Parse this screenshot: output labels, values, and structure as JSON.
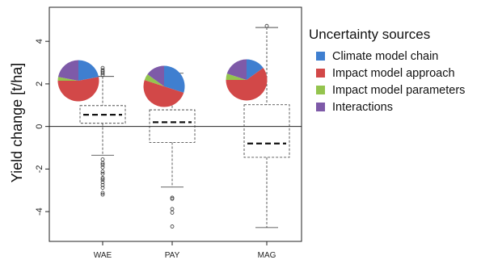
{
  "chart_data": {
    "type": "boxplot",
    "ylabel": "Yield change [t/ha]",
    "ylim": [
      -5.4,
      5.6
    ],
    "yticks": [
      -4,
      -2,
      0,
      2,
      4
    ],
    "reference_line": 0,
    "categories": [
      "WAE",
      "PAY",
      "MAG"
    ],
    "boxes": [
      {
        "name": "WAE",
        "whisker_low": -1.35,
        "q1": 0.15,
        "median": 0.55,
        "q3": 0.98,
        "whisker_high": 2.35,
        "outliers": [
          2.75,
          2.65,
          2.58,
          2.5,
          2.42,
          -1.55,
          -1.72,
          -1.8,
          -1.92,
          -2.12,
          -2.22,
          -2.42,
          -2.5,
          -2.62,
          -2.75,
          -2.88,
          -3.12,
          -3.2
        ]
      },
      {
        "name": "PAY",
        "whisker_low": -2.85,
        "q1": -0.75,
        "median": 0.2,
        "q3": 0.78,
        "whisker_high": 2.5,
        "outliers": [
          -3.35,
          -3.4,
          -3.88,
          -4.05,
          -4.7
        ]
      },
      {
        "name": "MAG",
        "whisker_low": -4.75,
        "q1": -1.45,
        "median": -0.8,
        "q3": 1.02,
        "whisker_high": 4.65,
        "outliers": [
          4.72
        ]
      }
    ],
    "uncertainty_shares": [
      {
        "name": "WAE",
        "values": [
          0.22,
          0.53,
          0.03,
          0.22
        ]
      },
      {
        "name": "PAY",
        "values": [
          0.3,
          0.5,
          0.05,
          0.15
        ]
      },
      {
        "name": "MAG",
        "values": [
          0.15,
          0.6,
          0.05,
          0.2
        ]
      }
    ],
    "legend": {
      "title": "Uncertainty sources",
      "position": "right",
      "entries": [
        {
          "label": "Climate model chain",
          "color": "#3f7fd0"
        },
        {
          "label": "Impact model approach",
          "color": "#d24848"
        },
        {
          "label": "Impact model parameters",
          "color": "#94c44e"
        },
        {
          "label": "Interactions",
          "color": "#7e5aa8"
        }
      ]
    }
  }
}
